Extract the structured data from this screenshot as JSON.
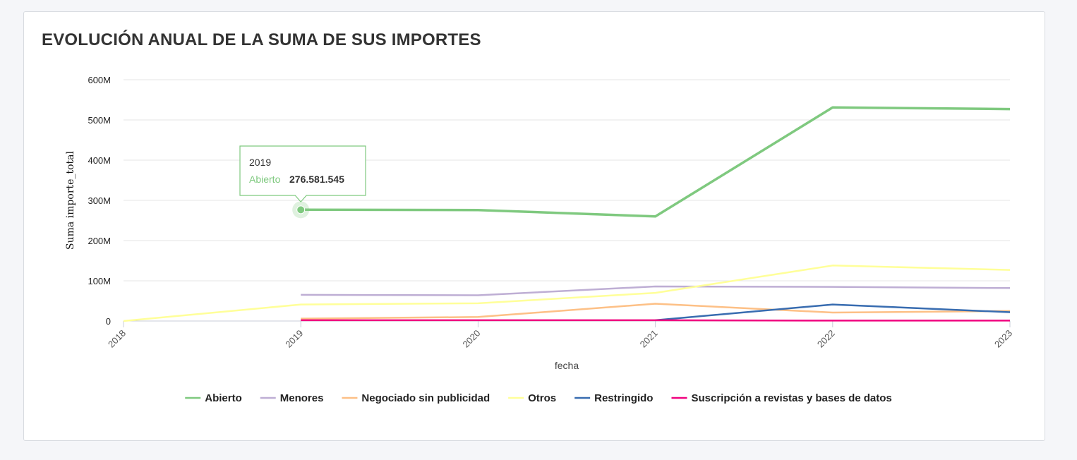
{
  "page": {
    "title": "EVOLUCIÓN ANUAL DE LA SUMA DE SUS IMPORTES"
  },
  "tooltip": {
    "year": "2019",
    "series": "Abierto",
    "value": "276.581.545"
  },
  "chart_data": {
    "type": "line",
    "title": "EVOLUCIÓN ANUAL DE LA SUMA DE SUS IMPORTES",
    "xlabel": "fecha",
    "ylabel": "Suma importe_total",
    "x": [
      "2018",
      "2019",
      "2020",
      "2021",
      "2022",
      "2023"
    ],
    "y_ticks": [
      "0",
      "100M",
      "200M",
      "300M",
      "400M",
      "500M",
      "600M"
    ],
    "ylim": [
      0,
      600000000
    ],
    "grid": true,
    "legend_position": "bottom",
    "series": [
      {
        "name": "Abierto",
        "color": "#7fc97f",
        "values": [
          null,
          276581545,
          276000000,
          260000000,
          531000000,
          527000000
        ]
      },
      {
        "name": "Menores",
        "color": "#beaed4",
        "values": [
          null,
          65000000,
          64000000,
          86000000,
          85000000,
          82000000
        ]
      },
      {
        "name": "Negociado sin publicidad",
        "color": "#fdc086",
        "values": [
          null,
          6000000,
          10000000,
          43000000,
          21000000,
          25000000
        ]
      },
      {
        "name": "Otros",
        "color": "#ffff99",
        "values": [
          0,
          41000000,
          44000000,
          70000000,
          138000000,
          127000000
        ]
      },
      {
        "name": "Restringido",
        "color": "#386cb0",
        "values": [
          null,
          null,
          null,
          2000000,
          41000000,
          22000000
        ]
      },
      {
        "name": "Suscripción a revistas y bases de datos",
        "color": "#f0027f",
        "values": [
          null,
          2000000,
          2000000,
          2000000,
          1000000,
          1000000
        ]
      }
    ]
  }
}
